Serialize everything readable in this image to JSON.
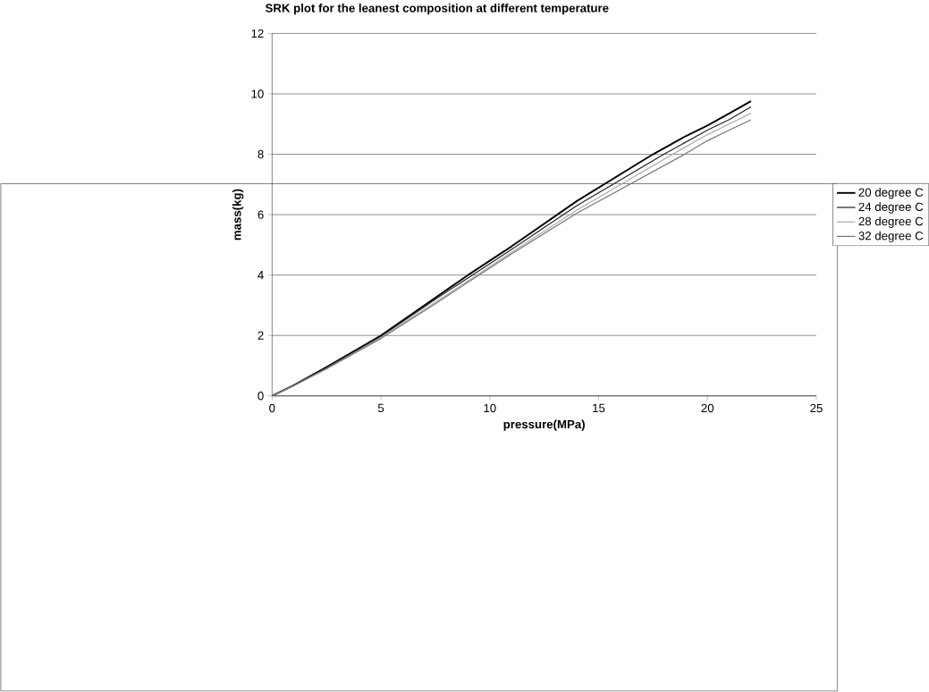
{
  "chart_data": {
    "type": "line",
    "title": "SRK plot for the leanest composition at different temperature",
    "xlabel": "pressure(MPa)",
    "ylabel": "mass(kg)",
    "xlim": [
      0,
      25
    ],
    "xticks": [
      0,
      5,
      10,
      15,
      20,
      25
    ],
    "ylim": [
      0,
      12
    ],
    "yticks": [
      0,
      2,
      4,
      6,
      8,
      10,
      12
    ],
    "grid": "y",
    "legend": "right",
    "series": [
      {
        "name": "20 degree C",
        "color": "#000000",
        "x": [
          0,
          1,
          2.5,
          5,
          7.5,
          9,
          11,
          14,
          17.5,
          19,
          20,
          21,
          22
        ],
        "values": [
          0,
          0.35,
          0.95,
          2.0,
          3.25,
          4.0,
          4.95,
          6.45,
          8.0,
          8.6,
          8.95,
          9.35,
          9.76
        ]
      },
      {
        "name": "24 degree C",
        "color": "#222222",
        "x": [
          0,
          1,
          2.5,
          5,
          7.5,
          9.2,
          11,
          14,
          18,
          20,
          21,
          22
        ],
        "values": [
          0,
          0.35,
          0.93,
          1.97,
          3.2,
          4.0,
          4.85,
          6.3,
          8.0,
          8.8,
          9.15,
          9.57
        ]
      },
      {
        "name": "28 degree C",
        "color": "#aaaaaa",
        "x": [
          0,
          1,
          2.5,
          5,
          7.5,
          9.4,
          11,
          14,
          18.4,
          20,
          21,
          22
        ],
        "values": [
          0,
          0.34,
          0.9,
          1.93,
          3.1,
          4.0,
          4.75,
          6.15,
          8.0,
          8.65,
          9.0,
          9.36
        ]
      },
      {
        "name": "32 degree C",
        "color": "#777777",
        "x": [
          0,
          1,
          2.5,
          5,
          7.5,
          9.5,
          11,
          14,
          18.95,
          20,
          21,
          22
        ],
        "values": [
          0,
          0.34,
          0.9,
          1.9,
          3.05,
          4.0,
          4.7,
          6.05,
          8.0,
          8.45,
          8.8,
          9.14
        ]
      }
    ]
  }
}
